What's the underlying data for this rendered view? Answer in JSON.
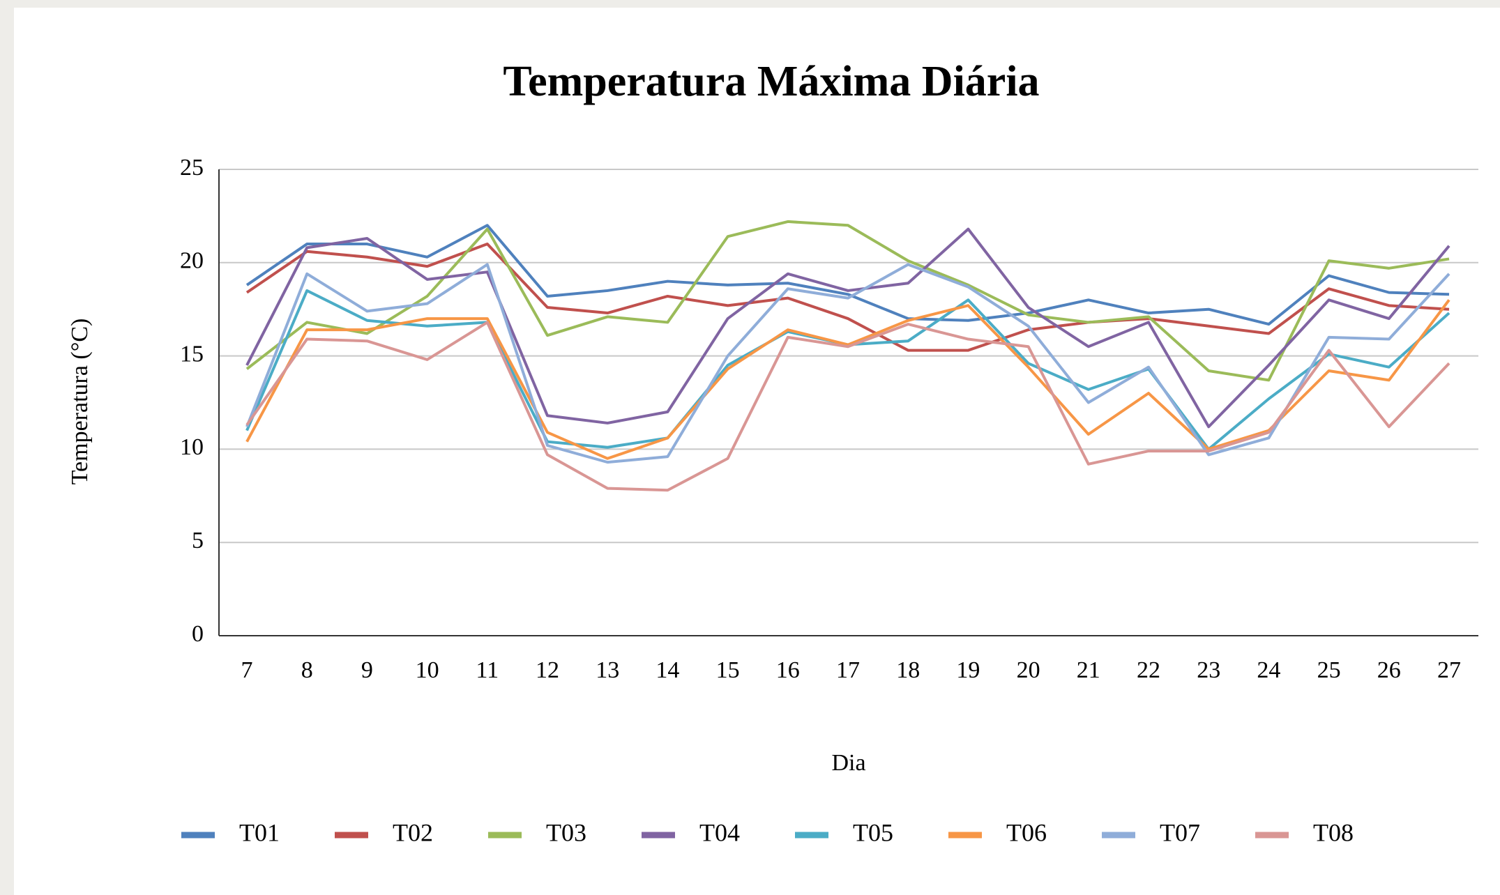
{
  "chart_data": {
    "type": "line",
    "title": "Temperatura Máxima Diária",
    "x_label": "Dia",
    "y_label": "Temperatura (°C)",
    "categories": [
      "7",
      "8",
      "9",
      "10",
      "11",
      "12",
      "13",
      "14",
      "15",
      "16",
      "17",
      "18",
      "19",
      "20",
      "21",
      "22",
      "23",
      "24",
      "25",
      "26",
      "27"
    ],
    "ylim": [
      0,
      25
    ],
    "yticks": [
      0,
      5,
      10,
      15,
      20,
      25
    ],
    "grid": true,
    "legend": "bottom",
    "series": [
      {
        "name": "T01",
        "color": "#4f81bd",
        "values": [
          18.8,
          21,
          21,
          20.3,
          22,
          18.2,
          18.5,
          19,
          18.8,
          18.9,
          18.3,
          17,
          16.9,
          17.3,
          18,
          17.3,
          17.5,
          16.7,
          19.3,
          18.4,
          18.3
        ]
      },
      {
        "name": "T02",
        "color": "#c0504d",
        "values": [
          18.4,
          20.6,
          20.3,
          19.8,
          21,
          17.6,
          17.3,
          18.2,
          17.7,
          18.1,
          17,
          15.3,
          15.3,
          16.4,
          16.8,
          17,
          16.6,
          16.2,
          18.6,
          17.7,
          17.5
        ]
      },
      {
        "name": "T03",
        "color": "#9bbb59",
        "values": [
          14.3,
          16.8,
          16.2,
          18.2,
          21.8,
          16.1,
          17.1,
          16.8,
          21.4,
          22.2,
          22,
          20.1,
          18.8,
          17.2,
          16.8,
          17.1,
          14.2,
          13.7,
          20.1,
          19.7,
          20.2
        ]
      },
      {
        "name": "T04",
        "color": "#8064a2",
        "values": [
          14.5,
          20.8,
          21.3,
          19.1,
          19.5,
          11.8,
          11.4,
          12,
          17,
          19.4,
          18.5,
          18.9,
          21.8,
          17.6,
          15.5,
          16.8,
          11.2,
          14.5,
          18,
          17,
          20.9
        ]
      },
      {
        "name": "T05",
        "color": "#4bacc6",
        "values": [
          11,
          18.5,
          16.9,
          16.6,
          16.8,
          10.4,
          10.1,
          10.6,
          14.5,
          16.3,
          15.6,
          15.8,
          18,
          14.6,
          13.2,
          14.3,
          10,
          12.7,
          15.1,
          14.4,
          17.3
        ]
      },
      {
        "name": "T06",
        "color": "#f79646",
        "values": [
          10.4,
          16.4,
          16.4,
          17,
          17,
          10.9,
          9.5,
          10.6,
          14.3,
          16.4,
          15.6,
          16.9,
          17.7,
          14.4,
          10.8,
          13,
          10,
          11,
          14.2,
          13.7,
          18
        ]
      },
      {
        "name": "T07",
        "color": "#8fadd9",
        "values": [
          11.2,
          19.4,
          17.4,
          17.8,
          19.9,
          10.2,
          9.3,
          9.6,
          15,
          18.6,
          18.1,
          19.9,
          18.7,
          16.6,
          12.5,
          14.4,
          9.7,
          10.6,
          16,
          15.9,
          19.4
        ]
      },
      {
        "name": "T08",
        "color": "#d99694",
        "values": [
          11.3,
          15.9,
          15.8,
          14.8,
          16.8,
          9.7,
          7.9,
          7.8,
          9.5,
          16,
          15.5,
          16.7,
          15.9,
          15.5,
          9.2,
          9.9,
          9.9,
          10.9,
          15.3,
          11.2,
          14.6
        ]
      }
    ]
  }
}
